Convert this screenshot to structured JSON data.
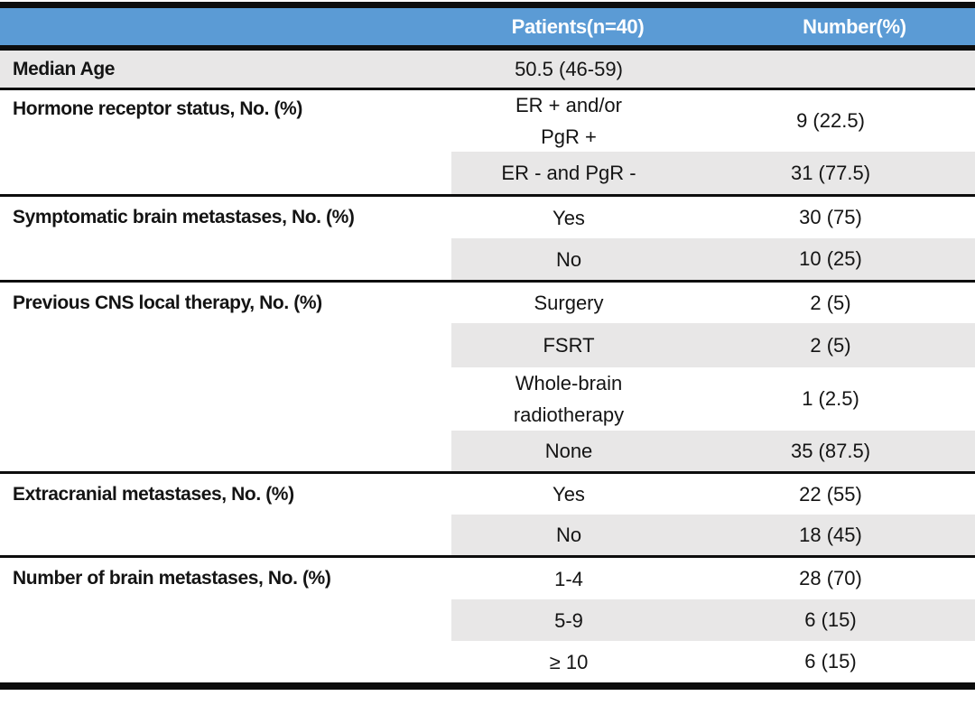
{
  "table": {
    "header": {
      "patients_label": "Patients(n=40)",
      "number_label": "Number(%)"
    },
    "rows": [
      {
        "label": "Median Age",
        "value": "50.5 (46-59)",
        "number": ""
      },
      {
        "label": "Hormone receptor status, No. (%)",
        "value": "ER + and/or\nPgR +",
        "number": "9 (22.5)"
      },
      {
        "label": "",
        "value": "ER - and PgR -",
        "number": "31 (77.5)"
      },
      {
        "label": "Symptomatic brain metastases, No. (%)",
        "value": "Yes",
        "number": "30 (75)"
      },
      {
        "label": "",
        "value": "No",
        "number": "10 (25)"
      },
      {
        "label": "Previous CNS local therapy, No. (%)",
        "value": "Surgery",
        "number": "2 (5)"
      },
      {
        "label": "",
        "value": "FSRT",
        "number": "2 (5)"
      },
      {
        "label": "",
        "value": "Whole-brain\nradiotherapy",
        "number": "1 (2.5)"
      },
      {
        "label": "",
        "value": "None",
        "number": "35 (87.5)"
      },
      {
        "label": "Extracranial metastases, No. (%)",
        "value": "Yes",
        "number": "22 (55)"
      },
      {
        "label": "",
        "value": "No",
        "number": "18 (45)"
      },
      {
        "label": "Number of brain metastases, No. (%)",
        "value": "1-4",
        "number": "28 (70)"
      },
      {
        "label": "",
        "value": "5-9",
        "number": "6 (15)"
      },
      {
        "label": "",
        "value": "≥ 10",
        "number": "6 (15)"
      }
    ],
    "colors": {
      "header_bg": "#5b9bd5",
      "header_text": "#ffffff",
      "row_shade": "#e8e7e7",
      "rule": "#0d0d0d"
    }
  }
}
